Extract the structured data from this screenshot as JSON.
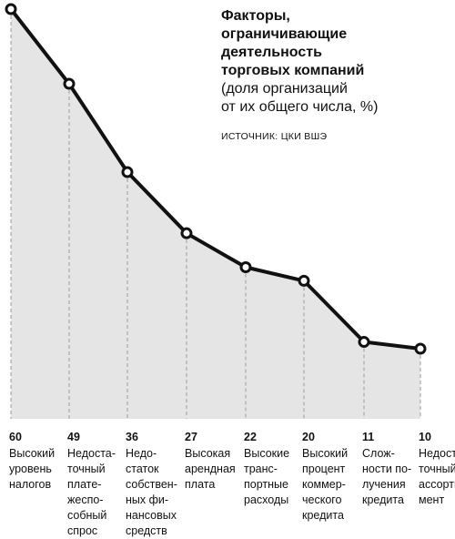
{
  "chart_data": {
    "type": "line",
    "title": "Факторы,\nограничивающие\nдеятельность\nторговых компаний",
    "subtitle": "(доля организаций\nот их общего числа, %)",
    "source": "Источник: ЦКИ ВШЭ",
    "categories": [
      "Высокий\nуровень\nналогов",
      "Недоста-\nточный\nплате-\nжеспо-\nсобный\nспрос",
      "Недо-\nстаток\nсобствен-\nных фи-\nнансовых\nсредств",
      "Высокая\nарендная\nплата",
      "Высокие\nтранс-\nпортные\nрасходы",
      "Высокий\nпроцент\nкоммер-\nческого\nкредита",
      "Слож-\nности по-\nлучения\nкредита",
      "Недоста-\nточный\nассорти-\nмент"
    ],
    "values": [
      60,
      49,
      36,
      27,
      22,
      20,
      11,
      10
    ],
    "value_labels": [
      "60",
      "49",
      "36",
      "27",
      "22",
      "20",
      "11",
      "10"
    ],
    "grid": false,
    "colors": {
      "line": "#111111",
      "fill": "#e5e5e5",
      "marker_fill": "#ffffff",
      "dash": "#9a9a9a"
    }
  }
}
